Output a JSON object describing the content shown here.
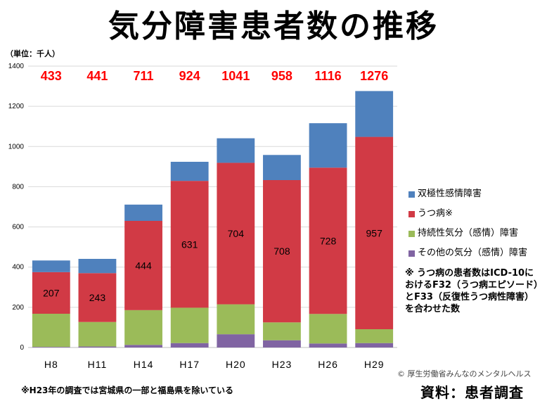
{
  "title": "気分障害患者数の推移",
  "unit_label": "（単位：千人）",
  "chart_data": {
    "type": "bar",
    "stacked": true,
    "categories": [
      "H8",
      "H11",
      "H14",
      "H17",
      "H20",
      "H23",
      "H26",
      "H29"
    ],
    "totals": [
      "433",
      "441",
      "711",
      "924",
      "1041",
      "958",
      "1116",
      "1276"
    ],
    "series": [
      {
        "name": "その他の気分（感情）障害",
        "color": "#8064a2",
        "values": [
          3,
          5,
          13,
          22,
          66,
          36,
          20,
          22
        ]
      },
      {
        "name": "持続性気分（感情）障害",
        "color": "#9bbb59",
        "values": [
          165,
          122,
          173,
          176,
          149,
          89,
          147,
          69
        ]
      },
      {
        "name": "うつ病※",
        "color": "#d13a45",
        "values": [
          207,
          243,
          444,
          631,
          704,
          708,
          728,
          957
        ],
        "labels": [
          "207",
          "243",
          "444",
          "631",
          "704",
          "708",
          "728",
          "957"
        ]
      },
      {
        "name": "双極性感情障害",
        "color": "#4f81bd",
        "values": [
          58,
          71,
          81,
          95,
          122,
          125,
          221,
          228
        ]
      }
    ],
    "ylim": [
      0,
      1400
    ],
    "yticks": [
      0,
      200,
      400,
      600,
      800,
      1000,
      1200,
      1400
    ],
    "grid": true,
    "legend_position": "right",
    "total_label_color": "#ff0000"
  },
  "note": "※ うつ病の患者数はICD-10におけるF32（うつ病エピソード）とF33（反復性うつ病性障害）を合わせた数",
  "footnote": "※H23年の調査では宮城県の一部と福島県を除いている",
  "credit": "© 厚生労働省みんなのメンタルヘルス",
  "source": "資料：患者調査"
}
